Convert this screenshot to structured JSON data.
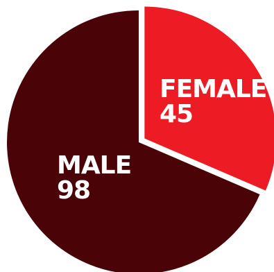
{
  "chart_data": {
    "type": "pie",
    "title": "",
    "slices": [
      {
        "label": "FEMALE",
        "value": 45,
        "color": "#ed1c24",
        "exploded": true
      },
      {
        "label": "MALE",
        "value": 98,
        "color": "#4a0306",
        "exploded": false
      }
    ],
    "start_angle": "top",
    "direction": "clockwise",
    "legend": "none"
  }
}
